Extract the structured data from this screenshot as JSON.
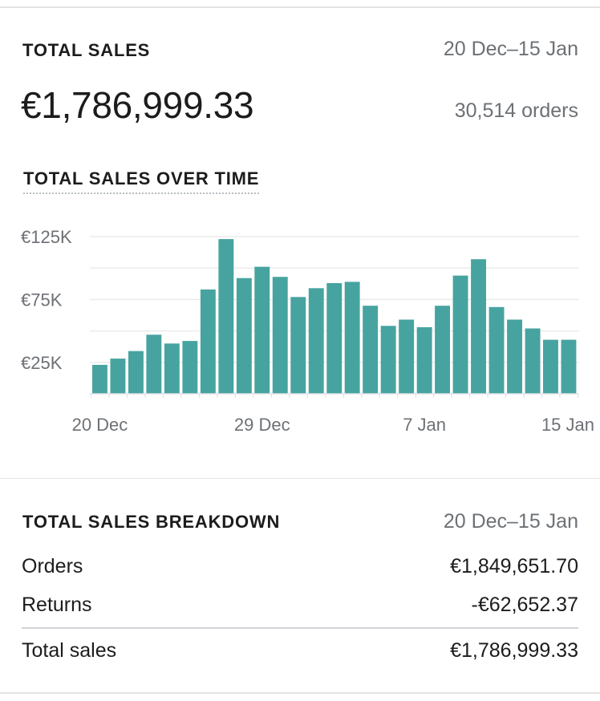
{
  "summary": {
    "heading": "TOTAL SALES",
    "date_range": "20 Dec–15 Jan",
    "amount": "€1,786,999.33",
    "orders": "30,514 orders"
  },
  "chart": {
    "title": "TOTAL SALES OVER TIME",
    "bar_color": "#47a3a0",
    "y_ticks": [
      "€125K",
      "€75K",
      "€25K"
    ],
    "x_ticks": [
      "20 Dec",
      "29 Dec",
      "7 Jan",
      "15 Jan"
    ]
  },
  "chart_data": {
    "type": "bar",
    "title": "TOTAL SALES OVER TIME",
    "xlabel": "",
    "ylabel": "",
    "ylim": [
      0,
      125000
    ],
    "grid": true,
    "y_tick_values": [
      25000,
      75000,
      125000
    ],
    "categories": [
      "20 Dec",
      "21 Dec",
      "22 Dec",
      "23 Dec",
      "24 Dec",
      "25 Dec",
      "26 Dec",
      "27 Dec",
      "28 Dec",
      "29 Dec",
      "30 Dec",
      "31 Dec",
      "1 Jan",
      "2 Jan",
      "3 Jan",
      "4 Jan",
      "5 Jan",
      "6 Jan",
      "7 Jan",
      "8 Jan",
      "9 Jan",
      "10 Jan",
      "11 Jan",
      "12 Jan",
      "13 Jan",
      "14 Jan",
      "15 Jan"
    ],
    "values": [
      23000,
      28000,
      34000,
      47000,
      40000,
      42000,
      83000,
      123000,
      92000,
      101000,
      93000,
      77000,
      84000,
      88000,
      89000,
      70000,
      54000,
      59000,
      53000,
      70000,
      94000,
      107000,
      69000,
      59000,
      52000,
      43000,
      43000
    ],
    "x_tick_labels": [
      "20 Dec",
      "29 Dec",
      "7 Jan",
      "15 Jan"
    ]
  },
  "breakdown": {
    "heading": "TOTAL SALES BREAKDOWN",
    "date_range": "20 Dec–15 Jan",
    "rows": [
      {
        "label": "Orders",
        "value": "€1,849,651.70"
      },
      {
        "label": "Returns",
        "value": "-€62,652.37"
      }
    ],
    "total": {
      "label": "Total sales",
      "value": "€1,786,999.33"
    }
  }
}
